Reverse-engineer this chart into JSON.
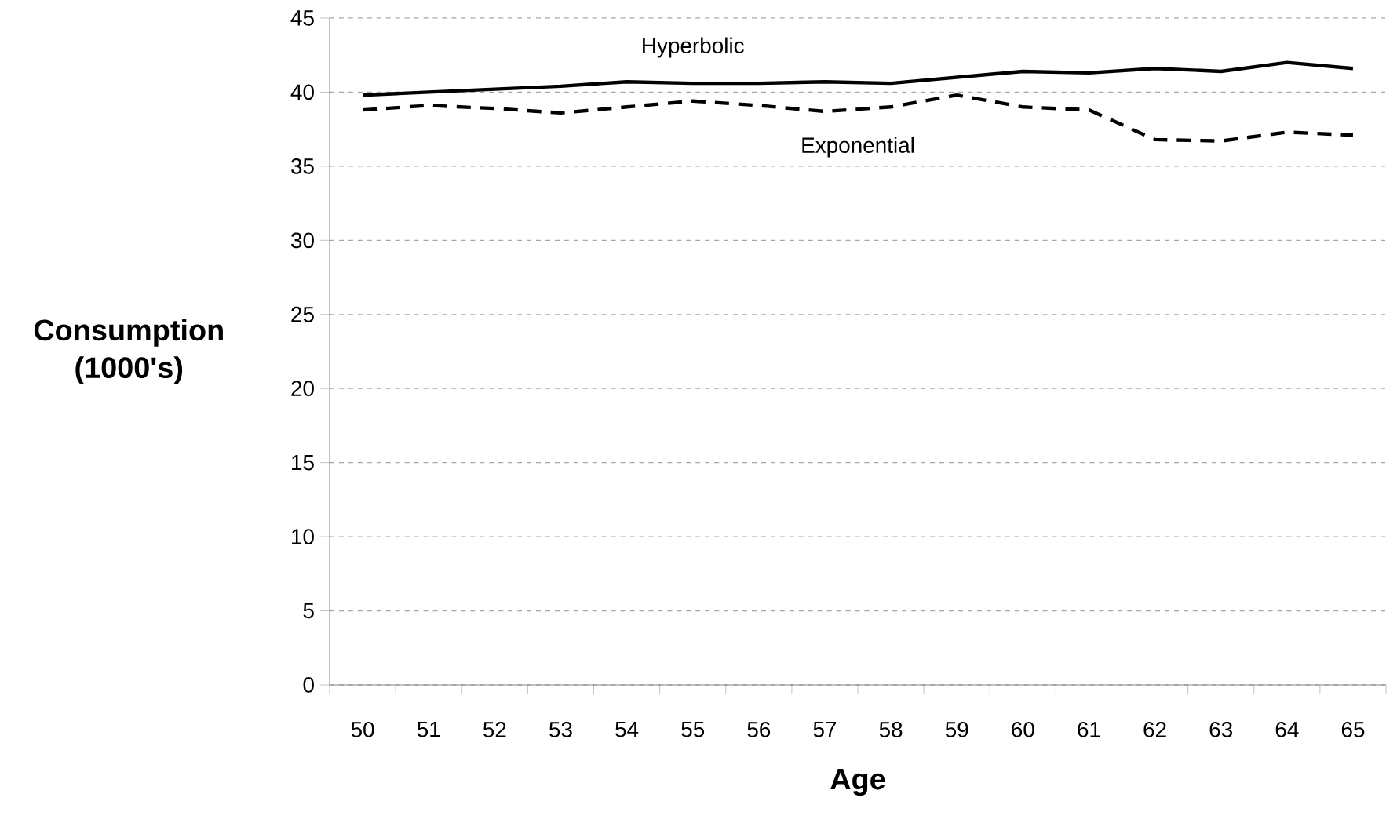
{
  "chart_data": {
    "type": "line",
    "xlabel": "Age",
    "ylabel": "Consumption (1000's)",
    "categories": [
      "50",
      "51",
      "52",
      "53",
      "54",
      "55",
      "56",
      "57",
      "58",
      "59",
      "60",
      "61",
      "62",
      "63",
      "64",
      "65"
    ],
    "series": [
      {
        "name": "Hyperbolic",
        "color": "#000000",
        "line_style": "solid",
        "values": [
          39.8,
          40.0,
          40.2,
          40.4,
          40.7,
          40.6,
          40.6,
          40.7,
          40.6,
          41.0,
          41.4,
          41.3,
          41.6,
          41.4,
          42.0,
          41.6
        ]
      },
      {
        "name": "Exponential",
        "color": "#000000",
        "line_style": "dashed",
        "values": [
          38.8,
          39.1,
          38.9,
          38.6,
          39.0,
          39.4,
          39.1,
          38.7,
          39.0,
          39.8,
          39.0,
          38.8,
          36.8,
          36.7,
          37.3,
          37.1
        ]
      }
    ],
    "ylim": [
      0,
      45
    ],
    "yticks": [
      0,
      5,
      10,
      15,
      20,
      25,
      30,
      35,
      40,
      45
    ],
    "grid": "y",
    "legend": false,
    "marker": "none"
  }
}
